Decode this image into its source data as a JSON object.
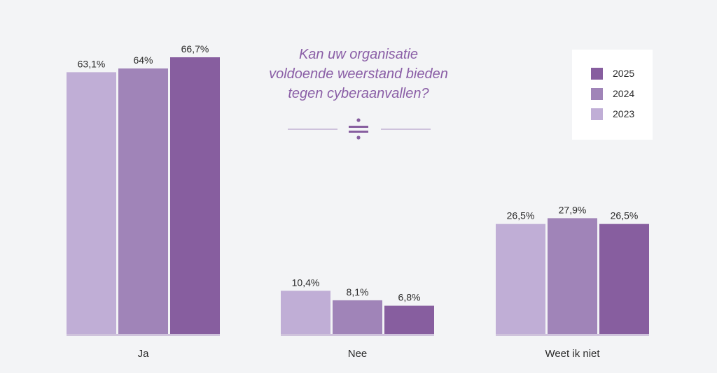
{
  "chart_data": {
    "type": "bar",
    "title_lines": [
      "Kan uw organisatie",
      "voldoende weerstand bieden",
      "tegen cyberaanvallen?"
    ],
    "categories": [
      "Ja",
      "Nee",
      "Weet ik niet"
    ],
    "series": [
      {
        "name": "2023",
        "color": "#c0aed6",
        "values": [
          63.1,
          10.4,
          26.5
        ],
        "labels": [
          "63,1%",
          "10,4%",
          "26,5%"
        ]
      },
      {
        "name": "2024",
        "color": "#a084b8",
        "values": [
          64,
          8.1,
          27.9
        ],
        "labels": [
          "64%",
          "8,1%",
          "27,9%"
        ]
      },
      {
        "name": "2025",
        "color": "#875e9f",
        "values": [
          66.7,
          6.8,
          26.5
        ],
        "labels": [
          "66,7%",
          "6,8%",
          "26,5%"
        ]
      }
    ],
    "legend_order": [
      "2025",
      "2024",
      "2023"
    ],
    "legend_position": "top-right",
    "ylim": [
      0,
      100
    ],
    "grid": false,
    "divider_icon": "division-sign-icon"
  }
}
